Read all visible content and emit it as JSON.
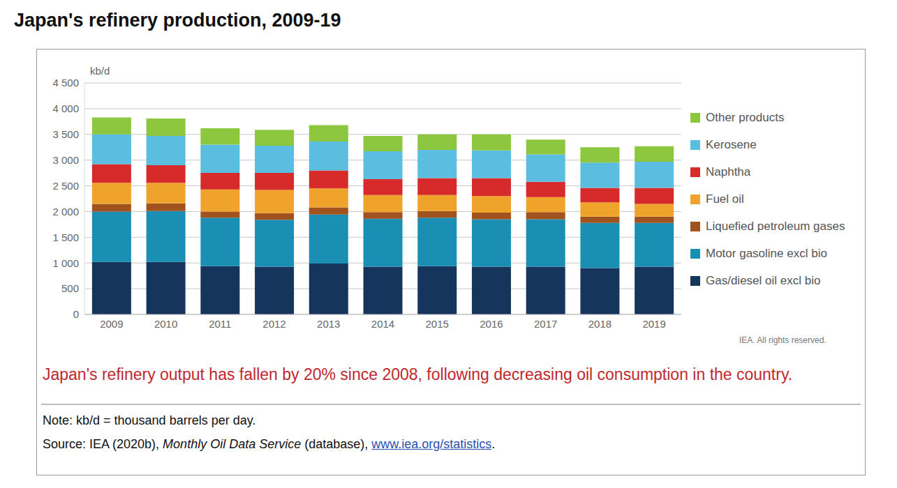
{
  "chart_data": {
    "type": "bar",
    "title": "Japan's refinery production, 2009-19",
    "y_label": "kb/d",
    "caption": "Japan's refinery output has fallen by 20% since 2008, following decreasing oil consumption in the country.",
    "note": "Note: kb/d = thousand barrels per day.",
    "source": [
      "Source: IEA (2020b), ",
      "Monthly Oil Data Service",
      " (database), ",
      "www.iea.org/statistics",
      "."
    ],
    "credit": "IEA. All rights reserved.",
    "categories": [
      "2009",
      "2010",
      "2011",
      "2012",
      "2013",
      "2014",
      "2015",
      "2016",
      "2017",
      "2018",
      "2019"
    ],
    "stacked": true,
    "grid": true,
    "legend": "right",
    "ylim": [
      0,
      4500
    ],
    "yticks": [
      0,
      500,
      {
        "value": 1000,
        "label": "1 000"
      },
      {
        "value": 1500,
        "label": "1 500"
      },
      {
        "value": 2000,
        "label": "2 000"
      },
      {
        "value": 2500,
        "label": "2 500"
      },
      {
        "value": 3000,
        "label": "3 000"
      },
      {
        "value": 3500,
        "label": "3 500"
      },
      {
        "value": 4000,
        "label": "4 000"
      },
      {
        "value": 4500,
        "label": "4 500"
      }
    ],
    "series": [
      {
        "name": "Gas/diesel oil excl bio",
        "color": "#16355c",
        "values": [
          1020,
          1020,
          940,
          930,
          990,
          930,
          940,
          930,
          930,
          900,
          930
        ]
      },
      {
        "name": "Motor gasoline excl bio",
        "color": "#1b8fb3",
        "values": [
          980,
          990,
          940,
          910,
          950,
          930,
          940,
          920,
          920,
          880,
          850
        ]
      },
      {
        "name": "Liquefied petroleum gases",
        "color": "#a0521f",
        "values": [
          150,
          150,
          120,
          130,
          140,
          130,
          130,
          130,
          140,
          120,
          120
        ]
      },
      {
        "name": "Fuel oil",
        "color": "#f0a32a",
        "values": [
          410,
          400,
          430,
          450,
          370,
          330,
          310,
          320,
          290,
          280,
          250
        ]
      },
      {
        "name": "Naphtha",
        "color": "#d72b2b",
        "values": [
          360,
          340,
          320,
          330,
          350,
          310,
          330,
          350,
          300,
          280,
          310
        ]
      },
      {
        "name": "Kerosene",
        "color": "#5bbde0",
        "values": [
          580,
          570,
          550,
          530,
          560,
          540,
          550,
          540,
          530,
          490,
          510
        ]
      },
      {
        "name": "Other products",
        "color": "#8dc63f",
        "values": [
          330,
          340,
          320,
          310,
          320,
          300,
          300,
          310,
          290,
          300,
          300
        ]
      }
    ]
  }
}
